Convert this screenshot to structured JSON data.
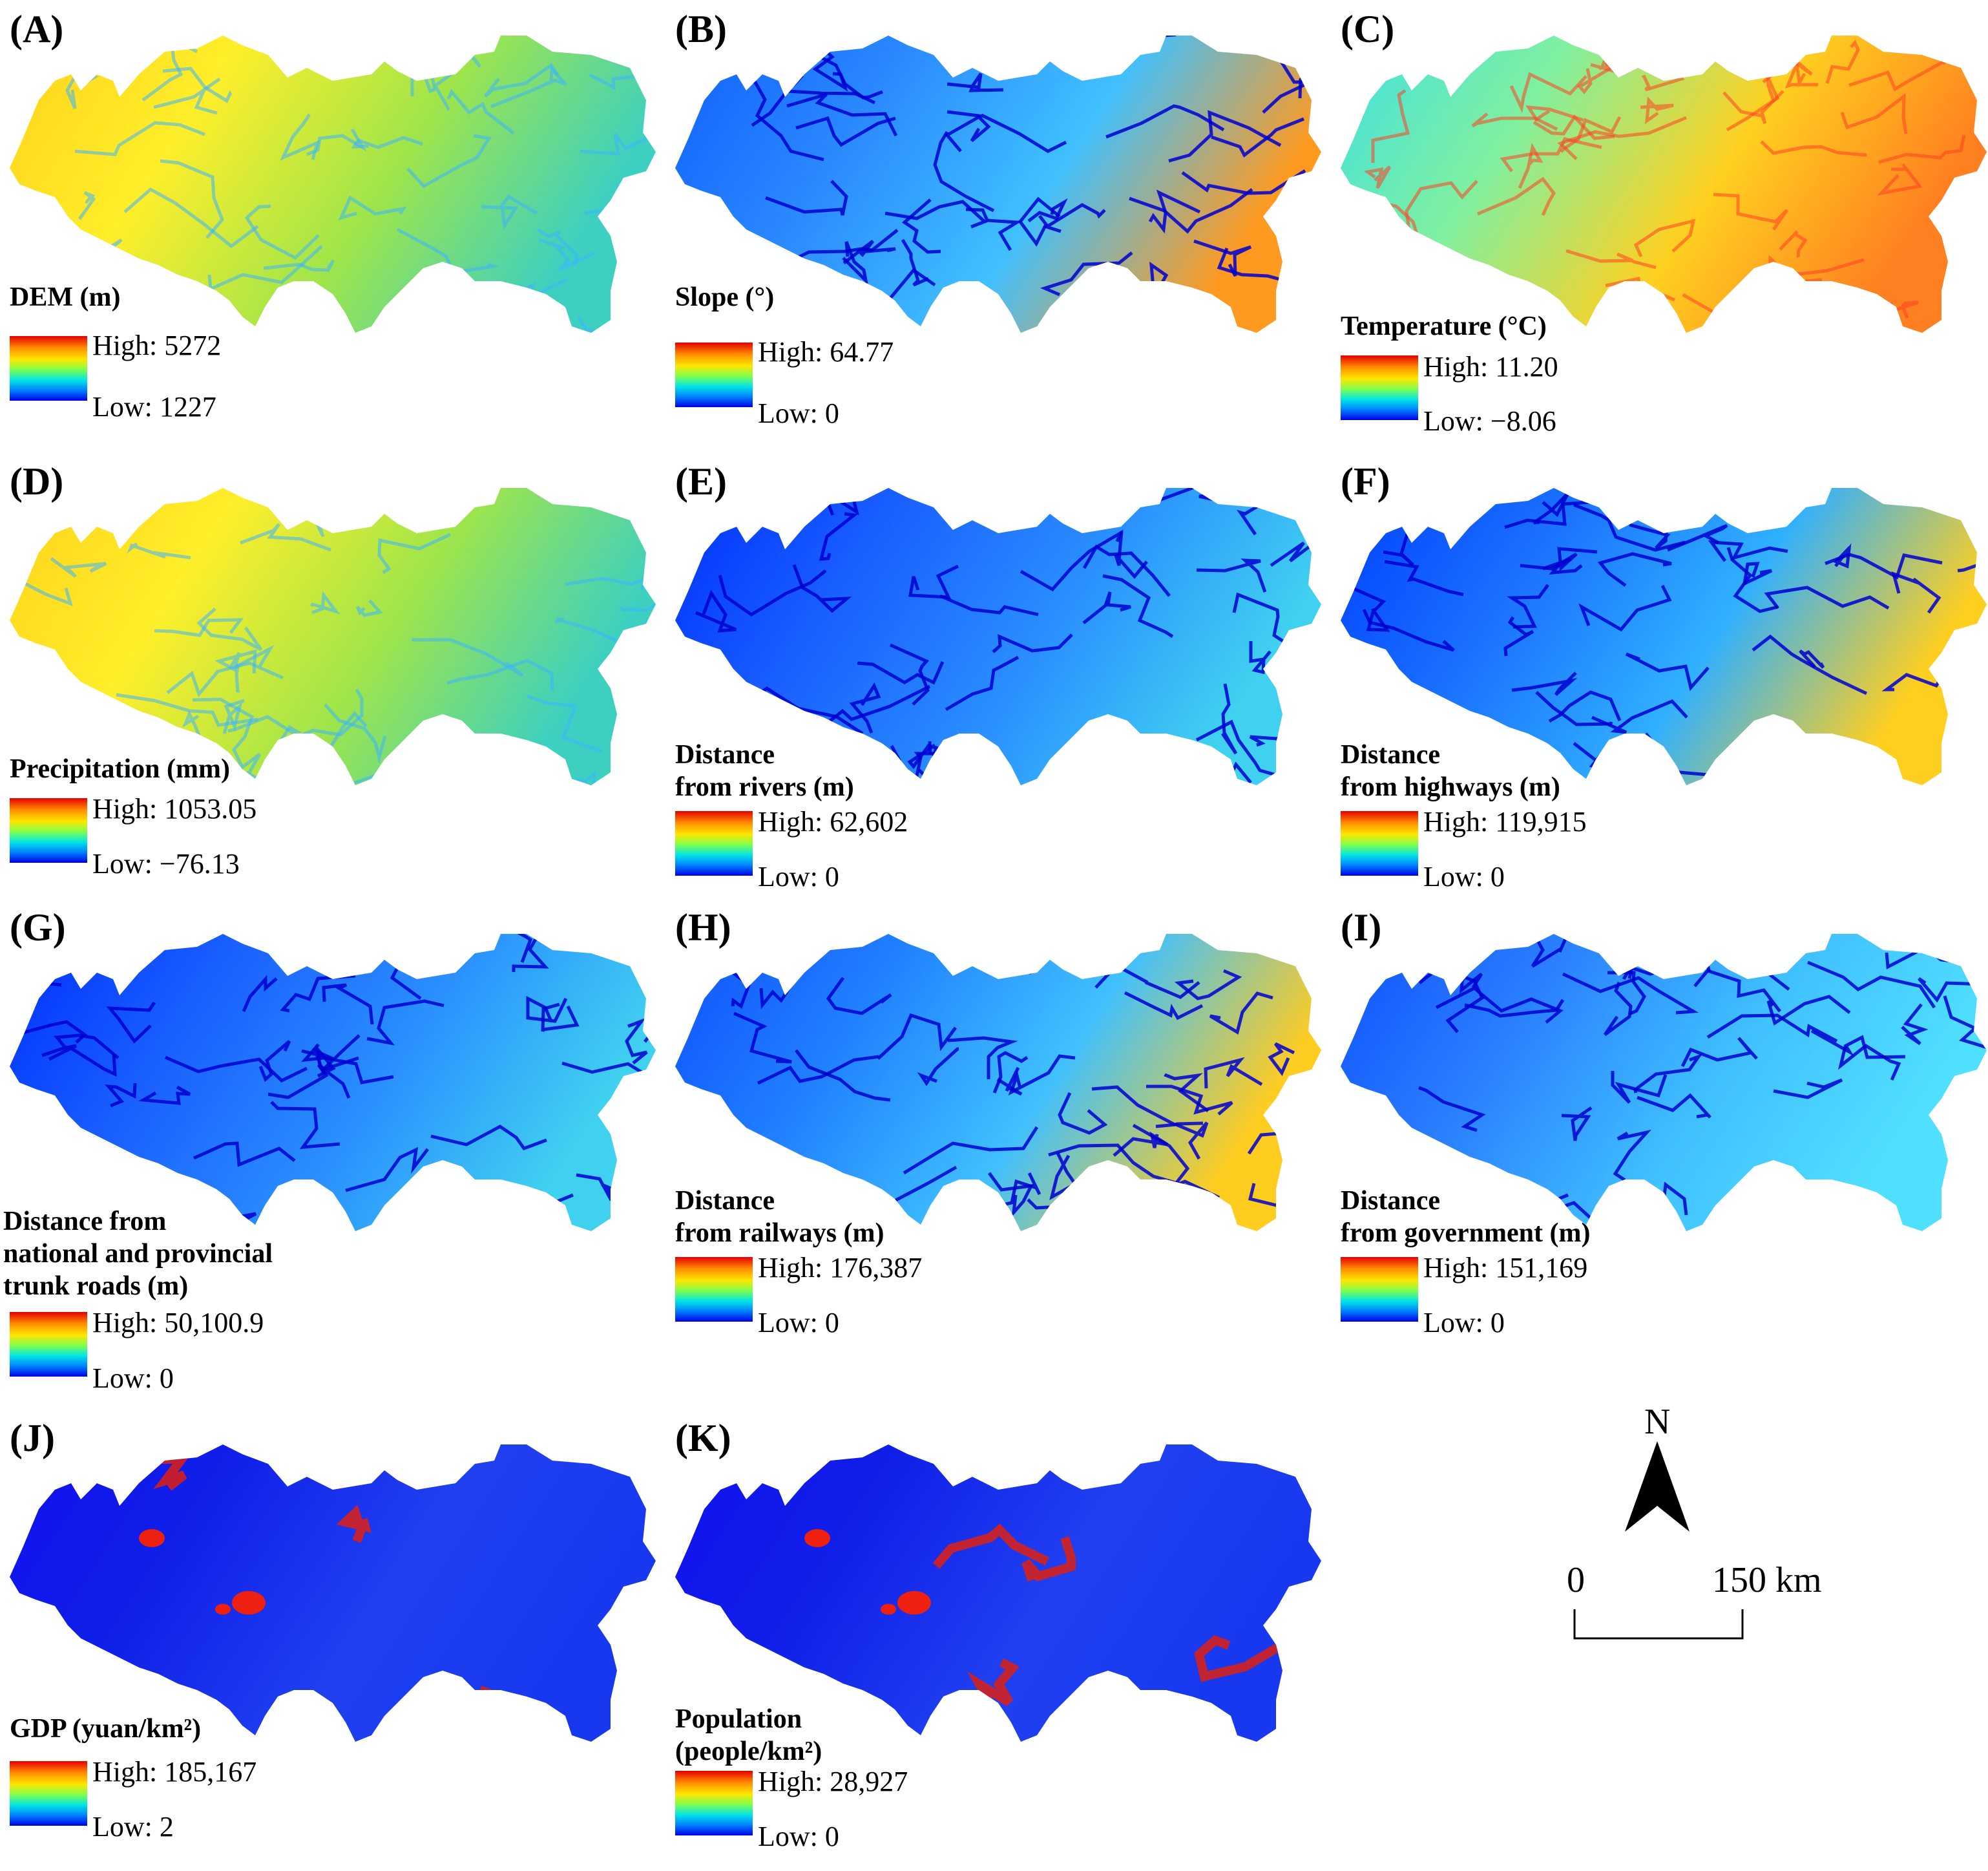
{
  "panels": [
    {
      "letter": "(A)",
      "title": [
        "DEM (m)"
      ],
      "high": "High: 5272",
      "low": "Low: 1227",
      "style": "terrain-warm"
    },
    {
      "letter": "(B)",
      "title": [
        "Slope (°)"
      ],
      "high": "High: 64.77",
      "low": "Low: 0",
      "style": "slope"
    },
    {
      "letter": "(C)",
      "title": [
        "Temperature (°C)"
      ],
      "high": "High: 11.20",
      "low": "Low: −8.06",
      "style": "temperature"
    },
    {
      "letter": "(D)",
      "title": [
        "Precipitation (mm)"
      ],
      "high": "High: 1053.05",
      "low": "Low: −76.13",
      "style": "terrain-warm"
    },
    {
      "letter": "(E)",
      "title": [
        "Distance",
        "from rivers (m)"
      ],
      "high": "High: 62,602",
      "low": "Low: 0",
      "style": "dist-network"
    },
    {
      "letter": "(F)",
      "title": [
        "Distance",
        "from highways (m)"
      ],
      "high": "High: 119,915",
      "low": "Low: 0",
      "style": "dist-line"
    },
    {
      "letter": "(G)",
      "title": [
        "Distance from",
        "national and provincial",
        "trunk roads (m)"
      ],
      "high": "High: 50,100.9",
      "low": "Low: 0",
      "style": "dist-network"
    },
    {
      "letter": "(H)",
      "title": [
        "Distance",
        "from railways (m)"
      ],
      "high": "High: 176,387",
      "low": "Low: 0",
      "style": "dist-rail"
    },
    {
      "letter": "(I)",
      "title": [
        "Distance",
        "from government (m)"
      ],
      "high": "High: 151,169",
      "low": "Low: 0",
      "style": "dist-points"
    },
    {
      "letter": "(J)",
      "title": [
        "GDP (yuan/km²)"
      ],
      "high": "High: 185,167",
      "low": "Low: 2",
      "style": "gdp"
    },
    {
      "letter": "(K)",
      "title": [
        "Population",
        "(people/km²)"
      ],
      "high": "High: 28,927",
      "low": "Low: 0",
      "style": "gdp"
    }
  ],
  "north_arrow": {
    "label": "N"
  },
  "scale_bar": {
    "start": "0",
    "end": "150 km"
  }
}
